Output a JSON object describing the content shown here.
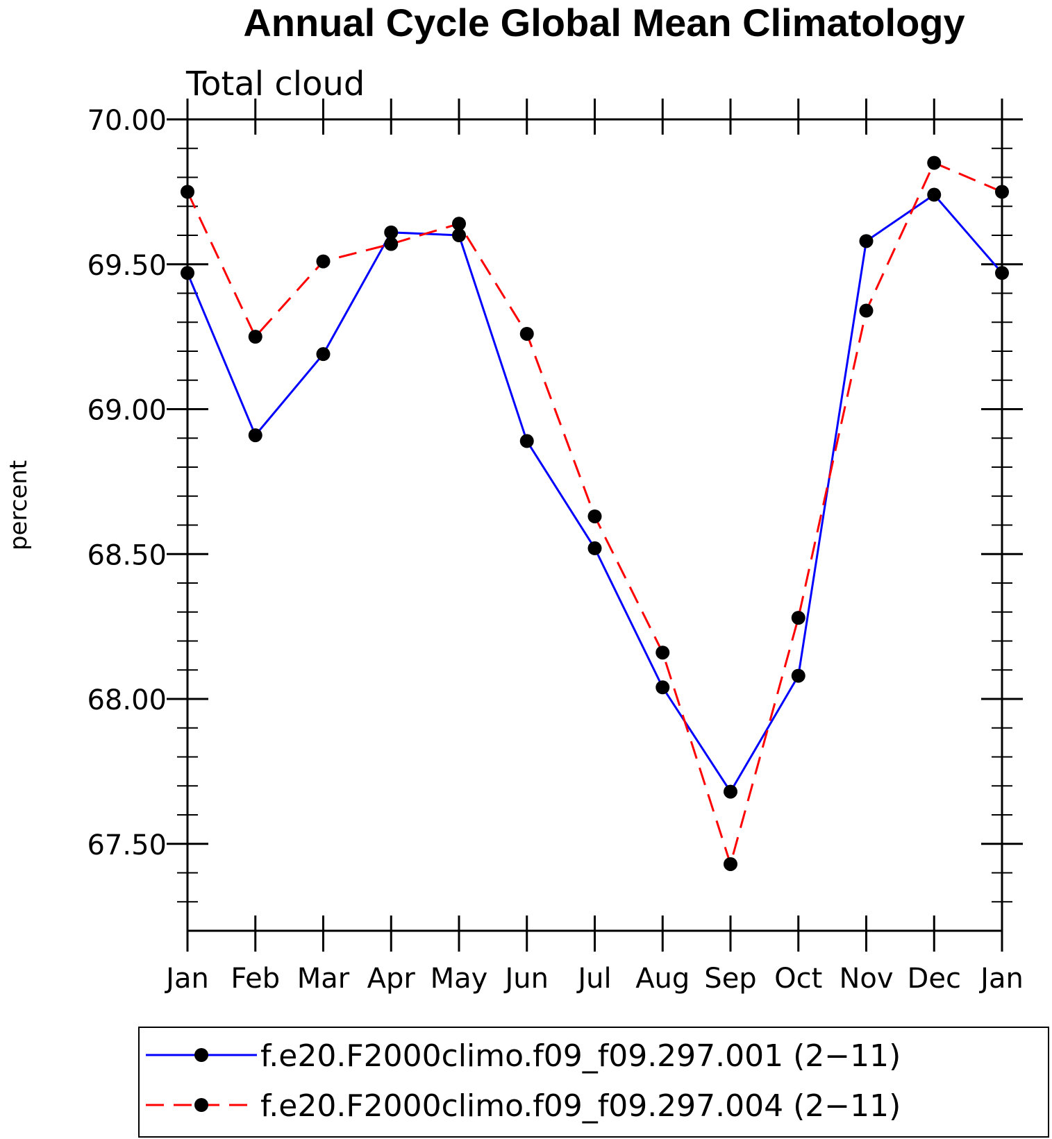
{
  "chart_data": {
    "type": "line",
    "title": "Annual Cycle Global Mean Climatology",
    "subtitle": "Total cloud",
    "xlabel": "",
    "ylabel": "percent",
    "categories": [
      "Jan",
      "Feb",
      "Mar",
      "Apr",
      "May",
      "Jun",
      "Jul",
      "Aug",
      "Sep",
      "Oct",
      "Nov",
      "Dec",
      "Jan"
    ],
    "ylim": [
      67.2,
      70.0
    ],
    "yticks": [
      "67.50",
      "68.00",
      "68.50",
      "69.00",
      "69.50",
      "70.00"
    ],
    "ytick_values": [
      67.5,
      68.0,
      68.5,
      69.0,
      69.5,
      70.0
    ],
    "grid": false,
    "legend_position": "bottom",
    "series": [
      {
        "name": "f.e20.F2000climo.f09_f09.297.001 (2−11)",
        "color": "#0000ff",
        "line_style": "solid",
        "marker": "filled-circle",
        "values": [
          69.47,
          68.91,
          69.19,
          69.61,
          69.6,
          68.89,
          68.52,
          68.04,
          67.68,
          68.08,
          69.58,
          69.74,
          69.47
        ]
      },
      {
        "name": "f.e20.F2000climo.f09_f09.297.004 (2−11)",
        "color": "#ff0000",
        "line_style": "dashed",
        "marker": "filled-circle",
        "values": [
          69.75,
          69.25,
          69.51,
          69.57,
          69.64,
          69.26,
          68.63,
          68.16,
          67.43,
          68.28,
          69.34,
          69.85,
          69.75
        ]
      }
    ]
  }
}
